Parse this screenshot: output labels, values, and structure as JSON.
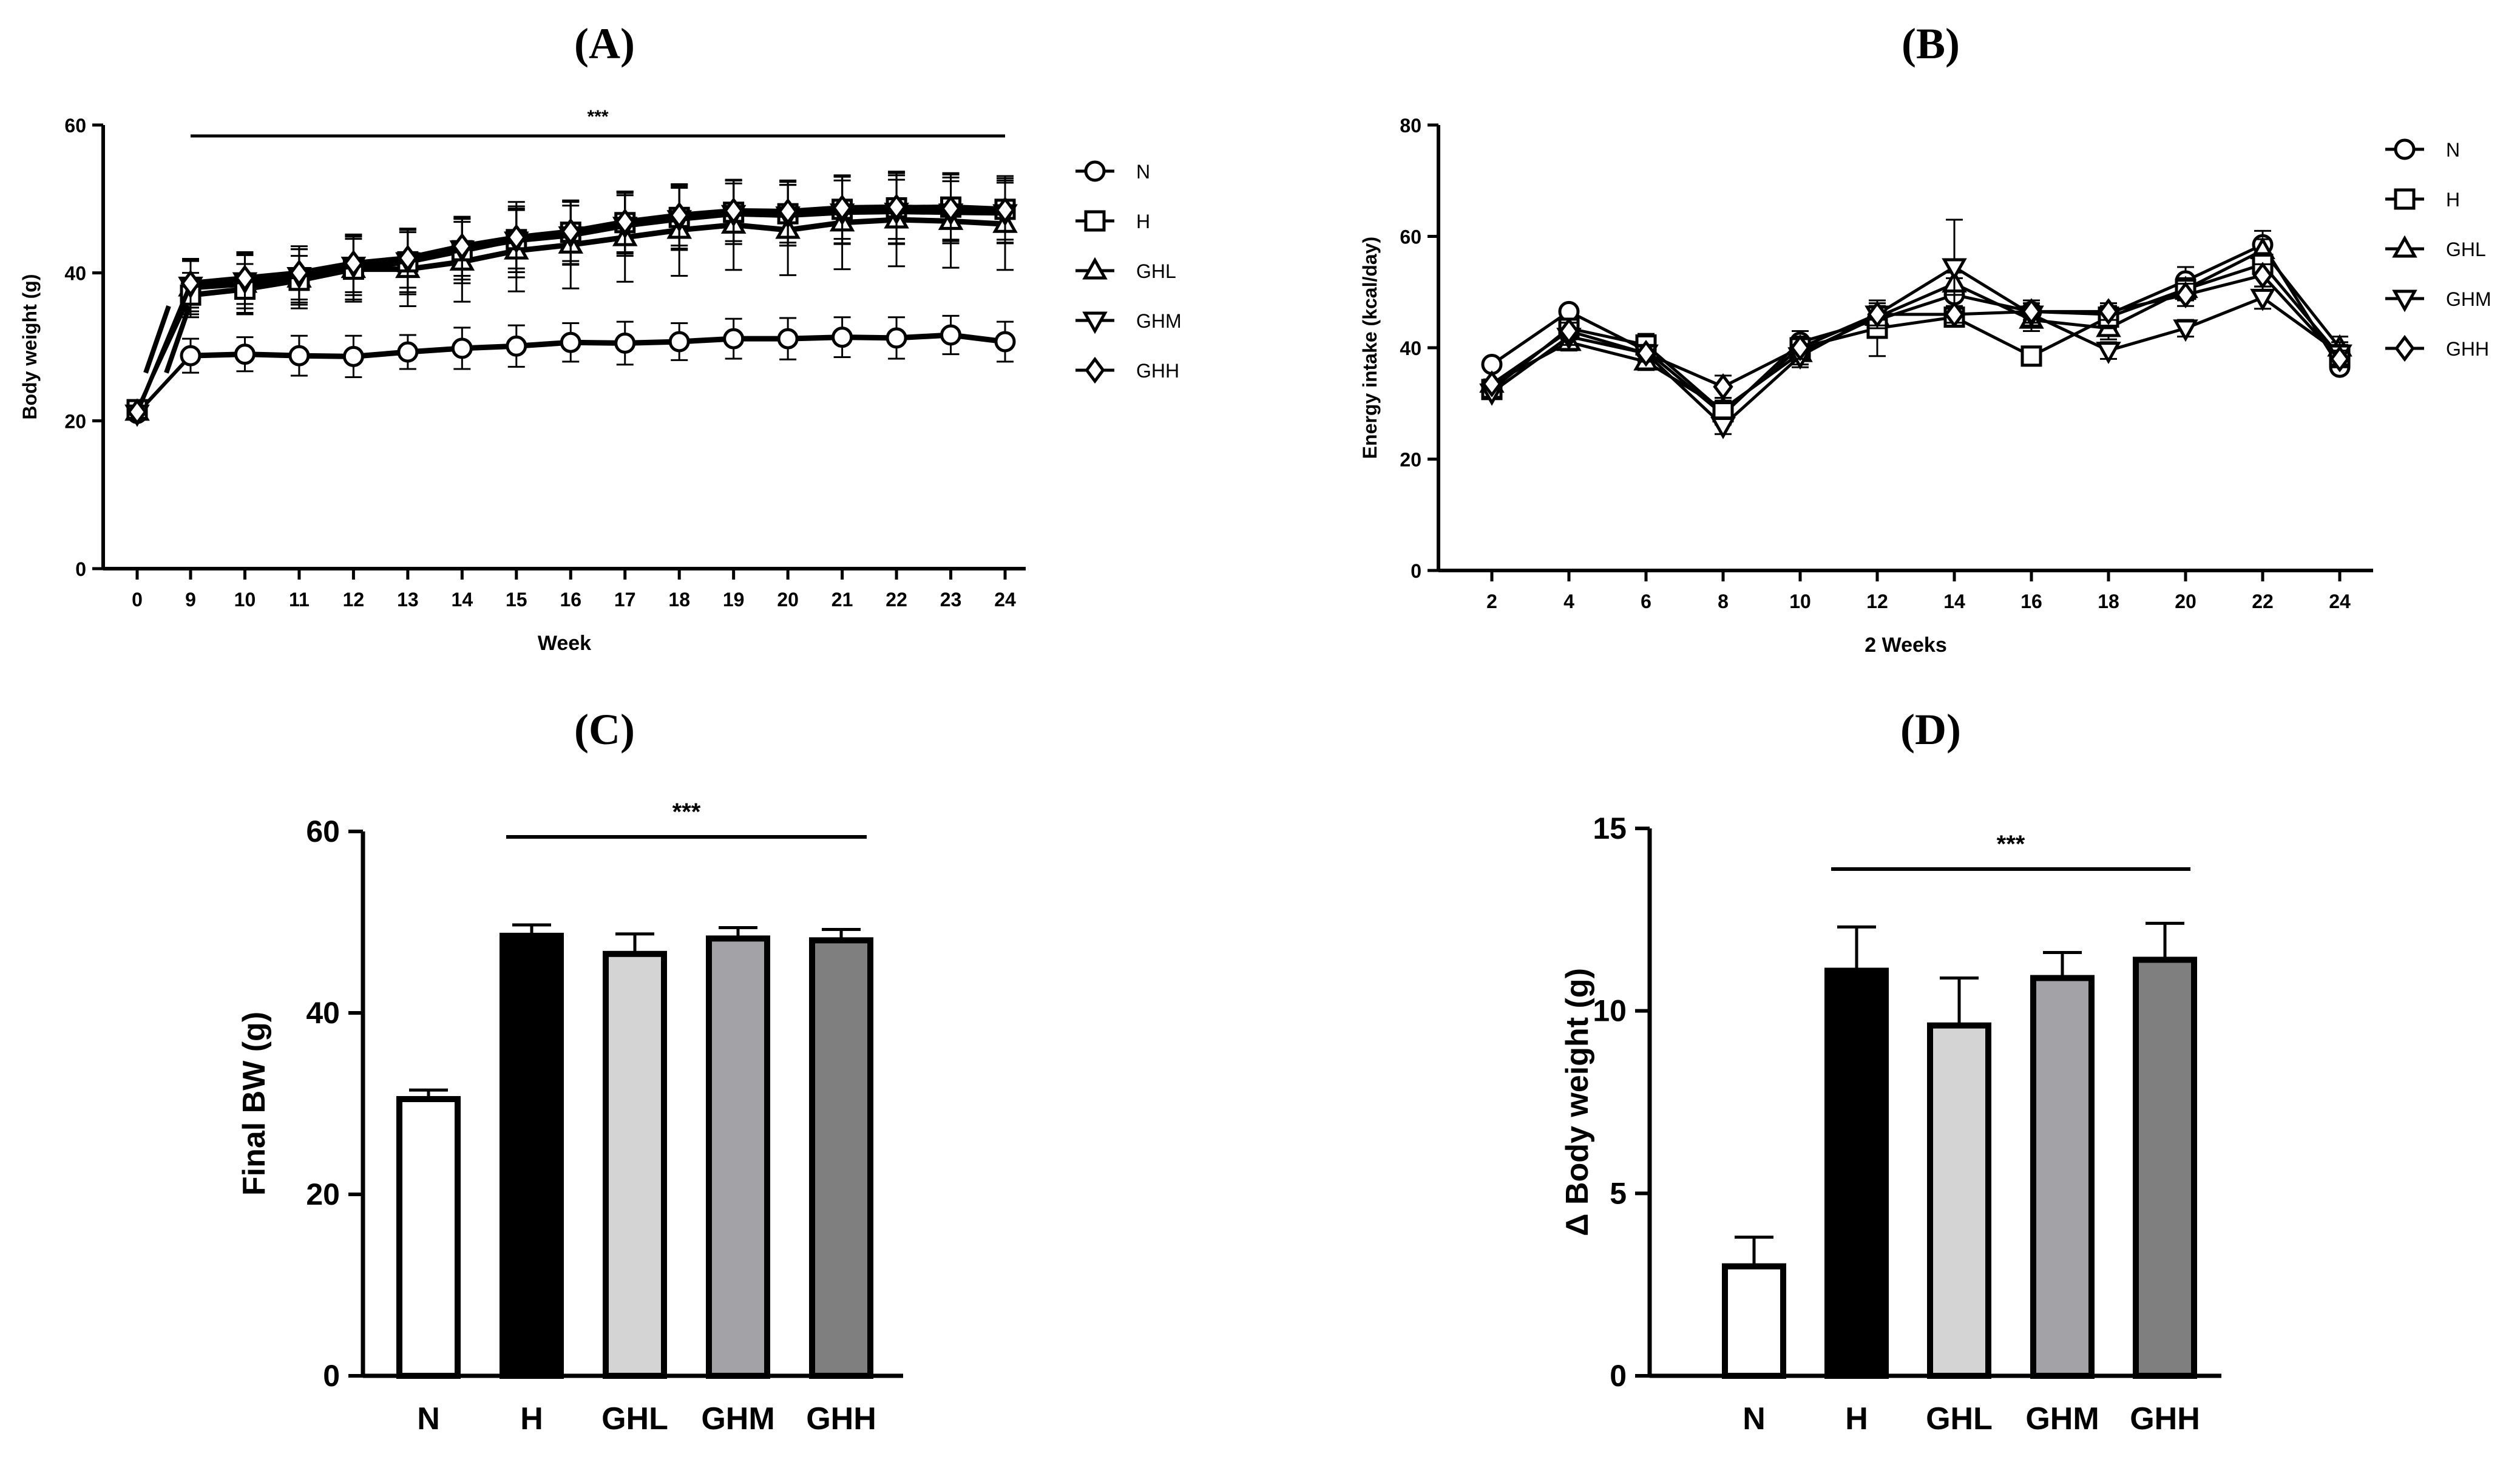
{
  "chart_data": [
    {
      "panel": "A",
      "panel_label": "(A)",
      "type": "line",
      "xlabel": "Week",
      "ylabel": "Body weight (g)",
      "ylim": [
        0,
        60
      ],
      "yticks": [
        "0",
        "20",
        "40",
        "60"
      ],
      "x": [
        "0",
        "9",
        "10",
        "11",
        "12",
        "13",
        "14",
        "15",
        "16",
        "17",
        "18",
        "19",
        "20",
        "21",
        "22",
        "23",
        "24"
      ],
      "axis_break": true,
      "significance": "***",
      "legend_position": "right",
      "series": [
        {
          "name": "N",
          "marker": "circle",
          "values": [
            21,
            28.8,
            29.0,
            28.8,
            28.7,
            29.3,
            29.8,
            30.1,
            30.6,
            30.5,
            30.7,
            31.1,
            31.1,
            31.3,
            31.2,
            31.6,
            30.7
          ],
          "errors": [
            0.8,
            2.3,
            2.3,
            2.7,
            2.8,
            2.3,
            2.8,
            2.8,
            2.6,
            2.9,
            2.5,
            2.7,
            2.8,
            2.7,
            2.8,
            2.6,
            2.7
          ]
        },
        {
          "name": "H",
          "marker": "square",
          "values": [
            21.5,
            37.0,
            37.8,
            39.0,
            40.5,
            41.5,
            43.0,
            44.5,
            45.5,
            46.8,
            47.5,
            48.2,
            48.0,
            48.6,
            48.8,
            48.9,
            48.6
          ],
          "errors": [
            0.8,
            3.0,
            3.4,
            3.3,
            4.1,
            4.4,
            4.4,
            5.1,
            4.3,
            4.2,
            4.2,
            4.3,
            4.3,
            4.6,
            4.9,
            4.6,
            4.5
          ]
        },
        {
          "name": "GHL",
          "marker": "triangle-up",
          "values": [
            21.2,
            38.0,
            38.5,
            39.2,
            40.5,
            40.5,
            41.5,
            43.0,
            43.8,
            44.8,
            45.8,
            46.5,
            45.8,
            46.8,
            47.2,
            47.0,
            46.6
          ],
          "errors": [
            0.8,
            3.6,
            3.9,
            4.0,
            4.4,
            5.0,
            5.4,
            5.5,
            5.9,
            6.0,
            6.2,
            6.1,
            6.1,
            6.3,
            6.3,
            6.3,
            6.2
          ]
        },
        {
          "name": "GHM",
          "marker": "triangle-down",
          "values": [
            21.0,
            38.3,
            38.9,
            39.6,
            41.0,
            41.6,
            43.2,
            44.4,
            45.1,
            46.4,
            47.3,
            48.0,
            47.8,
            48.2,
            48.3,
            48.2,
            48.1
          ],
          "errors": [
            0.8,
            3.5,
            3.7,
            3.6,
            4.0,
            4.2,
            4.1,
            4.3,
            4.0,
            4.1,
            4.2,
            4.1,
            4.1,
            4.3,
            4.3,
            4.2,
            4.1
          ]
        },
        {
          "name": "GHH",
          "marker": "diamond",
          "values": [
            21.2,
            38.6,
            39.3,
            40.0,
            41.3,
            42.0,
            43.6,
            44.8,
            45.6,
            46.9,
            47.8,
            48.4,
            48.3,
            48.8,
            48.9,
            48.7,
            48.5
          ],
          "errors": [
            0.8,
            3.3,
            3.5,
            3.6,
            3.9,
            4.0,
            4.0,
            4.2,
            4.0,
            4.1,
            4.1,
            4.1,
            4.2,
            4.2,
            4.3,
            4.2,
            4.0
          ]
        }
      ]
    },
    {
      "panel": "B",
      "panel_label": "(B)",
      "type": "line",
      "xlabel": "2 Weeks",
      "ylabel": "Energy intake (kcal/day)",
      "ylim": [
        0,
        80
      ],
      "yticks": [
        "0",
        "20",
        "40",
        "60",
        "80"
      ],
      "x": [
        "2",
        "4",
        "6",
        "8",
        "10",
        "12",
        "14",
        "16",
        "18",
        "20",
        "22",
        "24"
      ],
      "legend_position": "right",
      "series": [
        {
          "name": "N",
          "marker": "circle",
          "values": [
            37.0,
            46.5,
            39.5,
            28.0,
            41.0,
            45.0,
            49.5,
            46.5,
            46.0,
            52.0,
            58.5,
            36.5
          ],
          "errors": [
            0.8,
            1.0,
            1.5,
            1.8,
            2.0,
            2.5,
            3.0,
            1.5,
            1.5,
            2.5,
            2.5,
            1.0
          ]
        },
        {
          "name": "H",
          "marker": "square",
          "values": [
            32.5,
            43.5,
            40.5,
            28.5,
            40.0,
            43.5,
            45.5,
            38.5,
            45.5,
            50.5,
            55.0,
            38.5
          ],
          "errors": [
            0.8,
            1.5,
            2.0,
            2.0,
            2.0,
            5.0,
            1.5,
            1.5,
            2.0,
            2.0,
            2.0,
            2.0
          ]
        },
        {
          "name": "GHL",
          "marker": "triangle-up",
          "values": [
            33.5,
            41.0,
            37.5,
            29.0,
            39.0,
            45.5,
            51.5,
            45.0,
            43.5,
            50.5,
            57.5,
            40.0
          ],
          "errors": [
            0.8,
            1.5,
            1.5,
            2.0,
            2.0,
            2.0,
            2.0,
            2.0,
            2.0,
            2.0,
            2.0,
            2.0
          ]
        },
        {
          "name": "GHM",
          "marker": "triangle-down",
          "values": [
            32.0,
            42.0,
            39.0,
            26.0,
            38.5,
            46.0,
            54.5,
            46.0,
            39.5,
            43.5,
            49.0,
            39.0
          ],
          "errors": [
            0.8,
            1.5,
            1.5,
            1.5,
            2.0,
            2.5,
            8.5,
            2.0,
            1.5,
            1.5,
            2.0,
            2.0
          ]
        },
        {
          "name": "GHH",
          "marker": "diamond",
          "values": [
            33.5,
            43.0,
            39.0,
            33.0,
            40.0,
            46.0,
            46.0,
            46.5,
            46.5,
            49.5,
            53.0,
            38.0
          ],
          "errors": [
            0.8,
            1.5,
            1.5,
            2.0,
            2.0,
            2.0,
            1.5,
            2.0,
            1.5,
            2.0,
            2.0,
            1.5
          ]
        }
      ]
    },
    {
      "panel": "C",
      "panel_label": "(C)",
      "type": "bar",
      "xlabel": "",
      "ylabel": "Final BW (g)",
      "ylim": [
        0,
        60
      ],
      "yticks": [
        "0",
        "20",
        "40",
        "60"
      ],
      "categories": [
        "N",
        "H",
        "GHL",
        "GHM",
        "GHH"
      ],
      "values": [
        30.5,
        48.5,
        46.5,
        48.2,
        48.0
      ],
      "errors": [
        1.0,
        1.2,
        2.2,
        1.2,
        1.2
      ],
      "fills": [
        "#ffffff",
        "#000000",
        "#d4d4d4",
        "#a3a3a7",
        "#7f7f7f"
      ],
      "significance": "***"
    },
    {
      "panel": "D",
      "panel_label": "(D)",
      "type": "bar",
      "xlabel": "",
      "ylabel": "Δ Body weight (g)",
      "ylim": [
        0,
        15
      ],
      "yticks": [
        "0",
        "5",
        "10",
        "15"
      ],
      "categories": [
        "N",
        "H",
        "GHL",
        "GHM",
        "GHH"
      ],
      "values": [
        3.0,
        11.1,
        9.6,
        10.9,
        11.4
      ],
      "errors": [
        0.8,
        1.2,
        1.3,
        0.7,
        1.0
      ],
      "fills": [
        "#ffffff",
        "#000000",
        "#d4d4d4",
        "#a3a3a7",
        "#7f7f7f"
      ],
      "significance": "***"
    }
  ]
}
